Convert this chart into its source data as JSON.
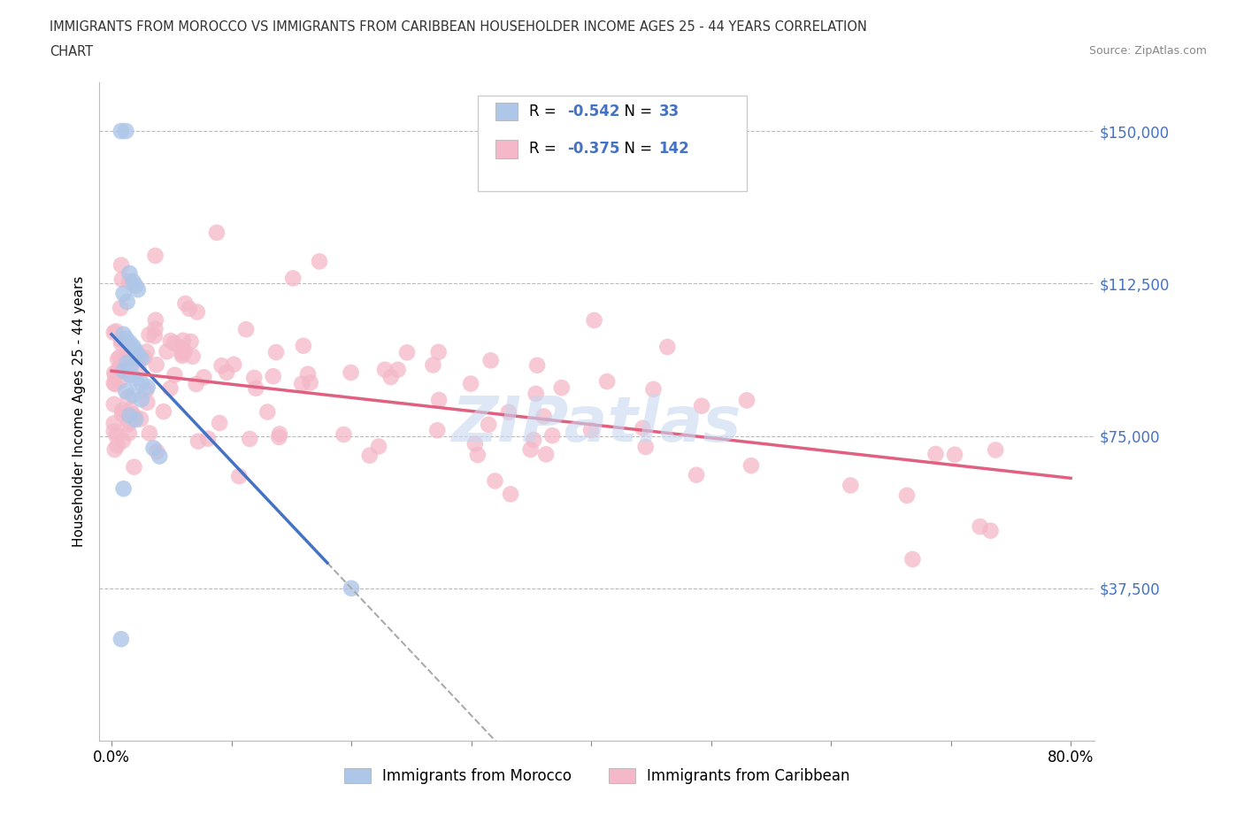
{
  "title_line1": "IMMIGRANTS FROM MOROCCO VS IMMIGRANTS FROM CARIBBEAN HOUSEHOLDER INCOME AGES 25 - 44 YEARS CORRELATION",
  "title_line2": "CHART",
  "source": "Source: ZipAtlas.com",
  "ylabel": "Householder Income Ages 25 - 44 years",
  "x_tick_labels_sparse": [
    "0.0%",
    "",
    "",
    "",
    "",
    "",
    "",
    "",
    "80.0%"
  ],
  "y_tick_positions": [
    37500,
    75000,
    112500,
    150000
  ],
  "y_tick_labels_right": [
    "$37,500",
    "$75,000",
    "$112,500",
    "$150,000"
  ],
  "morocco_color": "#aec6e8",
  "caribbean_color": "#f4b8c8",
  "morocco_line_color": "#4472c4",
  "caribbean_line_color": "#e06080",
  "dashed_line_color": "#aaaaaa",
  "legend_box_color_morocco": "#aec6e8",
  "legend_box_color_caribbean": "#f4b8c8",
  "R_morocco": -0.542,
  "N_morocco": 33,
  "R_caribbean": -0.375,
  "N_caribbean": 142,
  "watermark": "ZIPatlas",
  "watermark_color": "#c8d8f0",
  "grid_color": "#bbbbbb",
  "background_color": "#ffffff",
  "text_color_blue": "#4472c4",
  "title_color": "#333333",
  "source_color": "#888888"
}
